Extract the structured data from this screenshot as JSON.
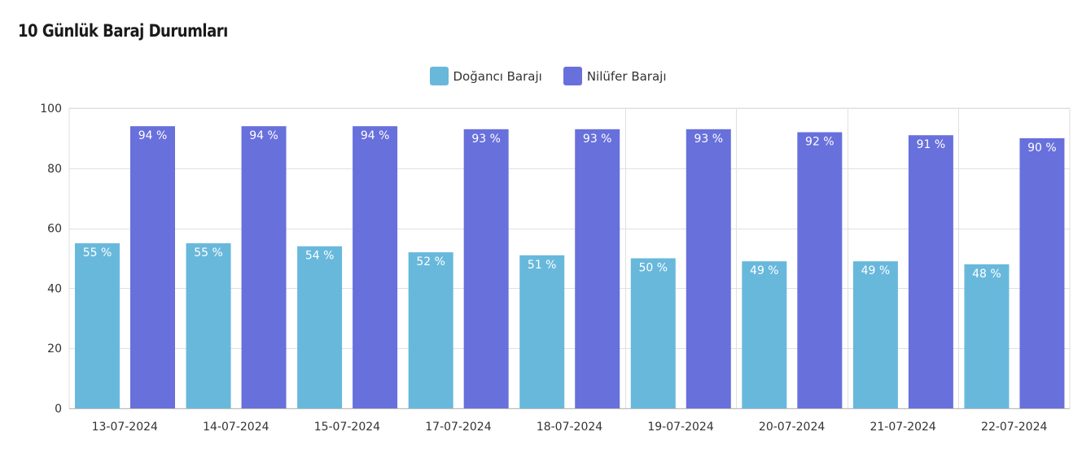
{
  "chart_data": {
    "type": "bar",
    "title": "10 Günlük Baraj Durumları",
    "xlabel": "",
    "ylabel": "",
    "ylim": [
      0,
      100
    ],
    "yticks": [
      0,
      20,
      40,
      60,
      80,
      100
    ],
    "grid": true,
    "legend_position": "top-center",
    "categories": [
      "13-07-2024",
      "14-07-2024",
      "15-07-2024",
      "17-07-2024",
      "18-07-2024",
      "19-07-2024",
      "20-07-2024",
      "21-07-2024",
      "22-07-2024"
    ],
    "series": [
      {
        "name": "Doğancı Barajı",
        "color": "#68B8DC",
        "values": [
          55,
          55,
          54,
          52,
          51,
          50,
          49,
          49,
          48
        ],
        "labels": [
          "55 %",
          "55 %",
          "54 %",
          "52 %",
          "51 %",
          "50 %",
          "49 %",
          "49 %",
          "48 %"
        ]
      },
      {
        "name": "Nilüfer Barajı",
        "color": "#6870DC",
        "values": [
          94,
          94,
          94,
          93,
          93,
          93,
          92,
          91,
          90
        ],
        "labels": [
          "94 %",
          "94 %",
          "94 %",
          "93 %",
          "93 %",
          "93 %",
          "92 %",
          "91 %",
          "90 %"
        ]
      }
    ]
  }
}
